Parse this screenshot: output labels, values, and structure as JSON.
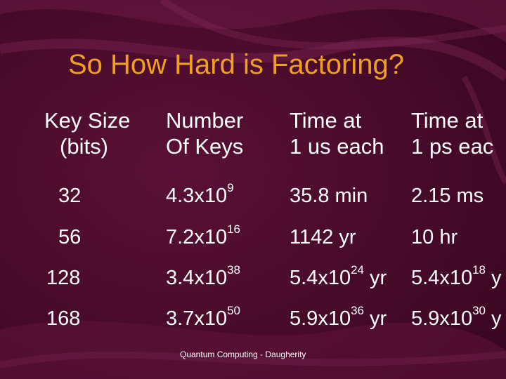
{
  "slide": {
    "title": "So How Hard is Factoring?",
    "footer": "Quantum Computing - Daugherity"
  },
  "table": {
    "headers": [
      {
        "line1": "Key Size",
        "line2": "(bits)"
      },
      {
        "line1": "Number",
        "line2": "Of Keys"
      },
      {
        "line1": "Time at",
        "line2": "1 us each"
      },
      {
        "line1": "Time at",
        "line2": "1 ps eac"
      }
    ],
    "rows": [
      {
        "bits": "32",
        "keys": {
          "base": "4.3x10",
          "exp": "9"
        },
        "t_us": {
          "base": "35.8 min",
          "exp": "",
          "suffix": ""
        },
        "t_ps": {
          "base": "2.15 ms",
          "exp": "",
          "suffix": ""
        }
      },
      {
        "bits": "56",
        "keys": {
          "base": "7.2x10",
          "exp": "16"
        },
        "t_us": {
          "base": "1142 yr",
          "exp": "",
          "suffix": ""
        },
        "t_ps": {
          "base": "10 hr",
          "exp": "",
          "suffix": ""
        }
      },
      {
        "bits": "128",
        "keys": {
          "base": "3.4x10",
          "exp": "38"
        },
        "t_us": {
          "base": "5.4x10",
          "exp": "24",
          "suffix": " yr"
        },
        "t_ps": {
          "base": "5.4x10",
          "exp": "18",
          "suffix": " y"
        }
      },
      {
        "bits": "168",
        "keys": {
          "base": "3.7x10",
          "exp": "50"
        },
        "t_us": {
          "base": "5.9x10",
          "exp": "36",
          "suffix": " yr"
        },
        "t_ps": {
          "base": "5.9x10",
          "exp": "30",
          "suffix": " y"
        }
      }
    ]
  },
  "colors": {
    "background": "#4a0a2c",
    "title": "#f0a020",
    "text": "#ffffff"
  }
}
